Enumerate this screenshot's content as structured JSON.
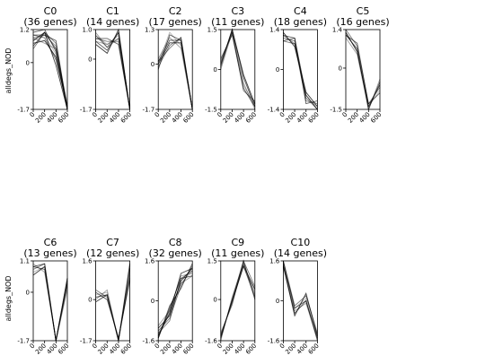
{
  "figure": {
    "ylabel": "alldegs_NOD",
    "x": [
      0,
      200,
      400,
      600
    ],
    "xtick_labels": [
      "0",
      "200",
      "400",
      "600"
    ]
  },
  "chart_data": [
    {
      "type": "line",
      "title": "C0",
      "subtitle": "(36 genes)",
      "ylim": [
        -1.7,
        1.2
      ],
      "yticks": [
        "1.2",
        "0",
        "-1.7"
      ],
      "series": [
        {
          "values": [
            0.8,
            1.0,
            0.3,
            -1.7
          ]
        },
        {
          "values": [
            0.6,
            1.1,
            0.5,
            -1.7
          ]
        },
        {
          "values": [
            1.0,
            0.9,
            0.1,
            -1.6
          ]
        },
        {
          "values": [
            0.9,
            1.0,
            0.6,
            -1.7
          ]
        },
        {
          "values": [
            0.7,
            0.8,
            0.2,
            -1.6
          ]
        },
        {
          "values": [
            1.1,
            1.2,
            0.4,
            -1.7
          ]
        },
        {
          "values": [
            0.5,
            1.1,
            0.7,
            -1.7
          ]
        },
        {
          "values": [
            0.9,
            0.7,
            0.5,
            -1.5
          ]
        },
        {
          "values": [
            0.8,
            1.1,
            -0.1,
            -1.7
          ]
        },
        {
          "values": [
            1.0,
            1.0,
            0.8,
            -1.7
          ]
        }
      ]
    },
    {
      "type": "line",
      "title": "C1",
      "subtitle": "(14 genes)",
      "ylim": [
        -1.7,
        1.0
      ],
      "yticks": [
        "1.0",
        "0",
        "-1.7"
      ],
      "series": [
        {
          "values": [
            0.8,
            0.5,
            0.8,
            -1.7
          ]
        },
        {
          "values": [
            0.6,
            0.3,
            0.9,
            -1.7
          ]
        },
        {
          "values": [
            0.7,
            0.6,
            0.6,
            -1.7
          ]
        },
        {
          "values": [
            0.9,
            0.4,
            0.7,
            -1.7
          ]
        },
        {
          "values": [
            0.5,
            0.2,
            1.0,
            -1.7
          ]
        },
        {
          "values": [
            0.7,
            0.7,
            0.5,
            -1.7
          ]
        },
        {
          "values": [
            0.8,
            0.4,
            0.9,
            -1.7
          ]
        },
        {
          "values": [
            0.6,
            0.5,
            0.7,
            -1.7
          ]
        }
      ]
    },
    {
      "type": "line",
      "title": "C2",
      "subtitle": "(17 genes)",
      "ylim": [
        -1.7,
        1.3
      ],
      "yticks": [
        "1.3",
        "0",
        "-1.7"
      ],
      "series": [
        {
          "values": [
            0.0,
            1.2,
            0.7,
            -1.7
          ]
        },
        {
          "values": [
            0.1,
            0.9,
            0.9,
            -1.7
          ]
        },
        {
          "values": [
            -0.1,
            0.7,
            1.0,
            -1.7
          ]
        },
        {
          "values": [
            0.2,
            1.0,
            0.6,
            -1.7
          ]
        },
        {
          "values": [
            0.0,
            0.8,
            0.8,
            -1.7
          ]
        },
        {
          "values": [
            -0.2,
            1.1,
            0.9,
            -1.7
          ]
        },
        {
          "values": [
            0.1,
            0.6,
            1.0,
            -1.7
          ]
        }
      ]
    },
    {
      "type": "line",
      "title": "C3",
      "subtitle": "(11 genes)",
      "ylim": [
        -1.5,
        1.5
      ],
      "yticks": [
        "1.5",
        "0",
        "-1.5"
      ],
      "series": [
        {
          "values": [
            0.2,
            1.4,
            -0.6,
            -1.3
          ]
        },
        {
          "values": [
            0.1,
            1.5,
            -0.3,
            -1.4
          ]
        },
        {
          "values": [
            0.3,
            1.4,
            -0.8,
            -1.2
          ]
        },
        {
          "values": [
            0.0,
            1.4,
            -0.5,
            -1.5
          ]
        },
        {
          "values": [
            0.2,
            1.5,
            -0.2,
            -1.3
          ]
        },
        {
          "values": [
            0.4,
            1.3,
            -0.7,
            -1.4
          ]
        }
      ]
    },
    {
      "type": "line",
      "title": "C4",
      "subtitle": "(18 genes)",
      "ylim": [
        -1.4,
        1.4
      ],
      "yticks": [
        "1.4",
        "0",
        "-1.4"
      ],
      "series": [
        {
          "values": [
            1.1,
            1.0,
            -1.0,
            -1.3
          ]
        },
        {
          "values": [
            1.2,
            1.1,
            -0.9,
            -1.4
          ]
        },
        {
          "values": [
            1.0,
            0.9,
            -1.1,
            -1.2
          ]
        },
        {
          "values": [
            1.1,
            1.0,
            -1.0,
            -1.4
          ]
        },
        {
          "values": [
            1.3,
            0.8,
            -0.8,
            -1.3
          ]
        },
        {
          "values": [
            1.0,
            1.1,
            -1.2,
            -1.1
          ]
        },
        {
          "values": [
            1.2,
            0.9,
            -0.9,
            -1.4
          ]
        }
      ]
    },
    {
      "type": "line",
      "title": "C5",
      "subtitle": "(16 genes)",
      "ylim": [
        -1.5,
        1.4
      ],
      "yticks": [
        "1.4",
        "0",
        "-1.5"
      ],
      "series": [
        {
          "values": [
            1.3,
            0.6,
            -1.4,
            -0.8
          ]
        },
        {
          "values": [
            1.2,
            0.7,
            -1.5,
            -0.5
          ]
        },
        {
          "values": [
            1.4,
            0.8,
            -1.3,
            -0.7
          ]
        },
        {
          "values": [
            1.1,
            0.5,
            -1.5,
            -0.4
          ]
        },
        {
          "values": [
            1.3,
            0.6,
            -1.4,
            -0.6
          ]
        },
        {
          "values": [
            1.2,
            0.9,
            -1.3,
            -0.9
          ]
        }
      ]
    },
    {
      "type": "line",
      "title": "C6",
      "subtitle": "(13 genes)",
      "ylim": [
        -1.7,
        1.1
      ],
      "yticks": [
        "1.1",
        "0",
        "-1.7"
      ],
      "series": [
        {
          "values": [
            0.7,
            0.9,
            -1.7,
            0.2
          ]
        },
        {
          "values": [
            0.9,
            0.8,
            -1.7,
            0.4
          ]
        },
        {
          "values": [
            0.8,
            1.0,
            -1.7,
            0.5
          ]
        },
        {
          "values": [
            1.0,
            0.7,
            -1.7,
            0.1
          ]
        },
        {
          "values": [
            0.6,
            0.9,
            -1.7,
            0.3
          ]
        },
        {
          "values": [
            0.9,
            1.0,
            -1.7,
            0.5
          ]
        }
      ]
    },
    {
      "type": "line",
      "title": "C7",
      "subtitle": "(12 genes)",
      "ylim": [
        -1.7,
        1.6
      ],
      "yticks": [
        "1.6",
        "0",
        "-1.7"
      ],
      "series": [
        {
          "values": [
            0.2,
            0.3,
            -1.7,
            1.0
          ]
        },
        {
          "values": [
            0.1,
            0.2,
            -1.7,
            1.3
          ]
        },
        {
          "values": [
            0.4,
            0.1,
            -1.6,
            0.8
          ]
        },
        {
          "values": [
            0.0,
            0.4,
            -1.7,
            1.1
          ]
        },
        {
          "values": [
            -0.1,
            0.2,
            -1.7,
            1.5
          ]
        },
        {
          "values": [
            0.3,
            0.0,
            -1.6,
            0.9
          ]
        }
      ]
    },
    {
      "type": "line",
      "title": "C8",
      "subtitle": "(32 genes)",
      "ylim": [
        -1.6,
        1.6
      ],
      "yticks": [
        "1.6",
        "0",
        "-1.6"
      ],
      "series": [
        {
          "values": [
            -1.3,
            -0.5,
            0.7,
            1.2
          ]
        },
        {
          "values": [
            -1.5,
            -0.3,
            0.9,
            1.0
          ]
        },
        {
          "values": [
            -1.2,
            -0.7,
            0.6,
            1.4
          ]
        },
        {
          "values": [
            -1.4,
            -0.4,
            1.0,
            1.1
          ]
        },
        {
          "values": [
            -1.1,
            -0.6,
            0.8,
            1.3
          ]
        },
        {
          "values": [
            -1.5,
            -0.2,
            0.5,
            1.5
          ]
        },
        {
          "values": [
            -1.3,
            -0.8,
            0.9,
            1.2
          ]
        },
        {
          "values": [
            -1.0,
            -0.4,
            0.7,
            1.0
          ]
        },
        {
          "values": [
            -1.4,
            -0.5,
            1.1,
            1.3
          ]
        }
      ]
    },
    {
      "type": "line",
      "title": "C9",
      "subtitle": "(11 genes)",
      "ylim": [
        -1.6,
        1.5
      ],
      "yticks": [
        "1.5",
        "0",
        "-1.6"
      ],
      "series": [
        {
          "values": [
            -1.4,
            -0.1,
            1.4,
            0.3
          ]
        },
        {
          "values": [
            -1.5,
            0.0,
            1.3,
            0.1
          ]
        },
        {
          "values": [
            -1.3,
            -0.2,
            1.5,
            0.5
          ]
        },
        {
          "values": [
            -1.6,
            0.1,
            1.4,
            0.2
          ]
        },
        {
          "values": [
            -1.4,
            -0.1,
            1.3,
            0.4
          ]
        },
        {
          "values": [
            -1.5,
            0.0,
            1.5,
            0.0
          ]
        }
      ]
    },
    {
      "type": "line",
      "title": "C10",
      "subtitle": "(14 genes)",
      "ylim": [
        -1.6,
        1.6
      ],
      "yticks": [
        "1.6",
        "0",
        "-1.6"
      ],
      "series": [
        {
          "values": [
            1.5,
            -0.3,
            0.1,
            -1.4
          ]
        },
        {
          "values": [
            1.4,
            -0.5,
            0.0,
            -1.5
          ]
        },
        {
          "values": [
            1.6,
            -0.2,
            0.2,
            -1.3
          ]
        },
        {
          "values": [
            1.5,
            -0.4,
            -0.1,
            -1.5
          ]
        },
        {
          "values": [
            1.4,
            -0.6,
            0.3,
            -1.4
          ]
        },
        {
          "values": [
            1.6,
            -0.3,
            0.0,
            -1.6
          ]
        }
      ]
    }
  ]
}
